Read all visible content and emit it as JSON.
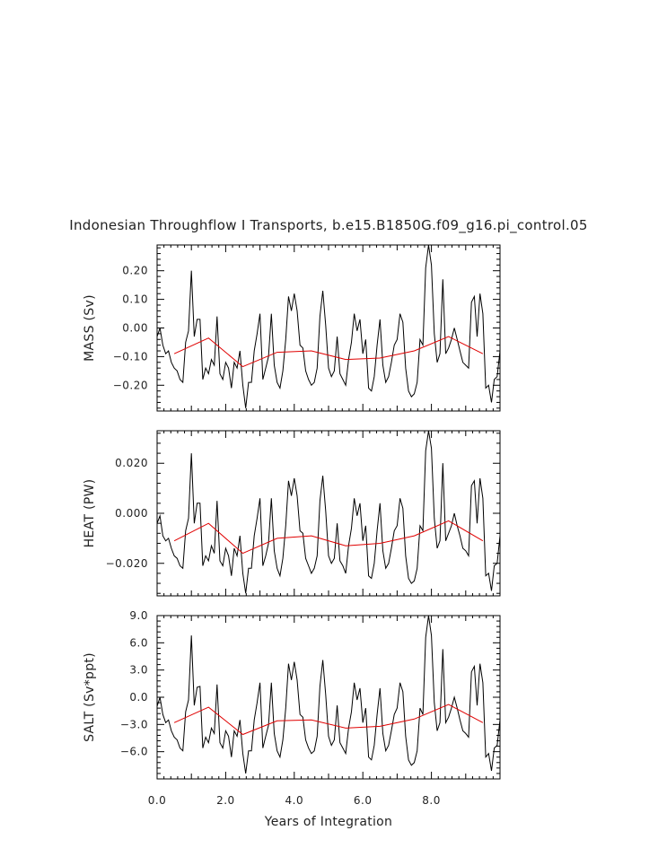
{
  "figure": {
    "title": "Indonesian Throughflow I Transports, b.e15.B1850G.f09_g16.pi_control.05",
    "xlabel": "Years of Integration",
    "x_tick_labels": [
      "0.0",
      "2.0",
      "4.0",
      "6.0",
      "8.0"
    ]
  },
  "colors": {
    "raw_series": "#000000",
    "annual_mean": "#e00000"
  },
  "chart_data": [
    {
      "type": "line",
      "ylabel": "MASS (Sv)",
      "xlim": [
        0,
        10
      ],
      "ylim": [
        -0.29,
        0.29
      ],
      "y_ticks": [
        0.2,
        0.1,
        0.0,
        -0.1,
        -0.2
      ],
      "y_tick_labels": [
        "0.20",
        "0.10",
        "0.00",
        "−0.10",
        "−0.20"
      ],
      "series": [
        {
          "x": [
            0.0,
            0.083,
            0.167,
            0.25,
            0.333,
            0.417,
            0.5,
            0.583,
            0.667,
            0.75,
            0.833,
            0.917,
            1.0,
            1.083,
            1.167,
            1.25,
            1.333,
            1.417,
            1.5,
            1.583,
            1.667,
            1.75,
            1.833,
            1.917,
            2.0,
            2.083,
            2.167,
            2.25,
            2.333,
            2.417,
            2.5,
            2.583,
            2.667,
            2.75,
            2.833,
            2.917,
            3.0,
            3.083,
            3.167,
            3.25,
            3.333,
            3.417,
            3.5,
            3.583,
            3.667,
            3.75,
            3.833,
            3.917,
            4.0,
            4.083,
            4.167,
            4.25,
            4.333,
            4.417,
            4.5,
            4.583,
            4.667,
            4.75,
            4.833,
            4.917,
            5.0,
            5.083,
            5.167,
            5.25,
            5.333,
            5.417,
            5.5,
            5.583,
            5.667,
            5.75,
            5.833,
            5.917,
            6.0,
            6.083,
            6.167,
            6.25,
            6.333,
            6.417,
            6.5,
            6.583,
            6.667,
            6.75,
            6.833,
            6.917,
            7.0,
            7.083,
            7.167,
            7.25,
            7.333,
            7.417,
            7.5,
            7.583,
            7.667,
            7.75,
            7.833,
            7.917,
            8.0,
            8.083,
            8.167,
            8.25,
            8.333,
            8.417,
            8.5,
            8.583,
            8.667,
            8.75,
            8.833,
            8.917,
            9.0,
            9.083,
            9.167,
            9.25,
            9.333,
            9.417,
            9.5,
            9.583,
            9.667,
            9.75,
            9.833,
            9.917,
            10.0
          ],
          "y": [
            -0.03,
            0.0,
            -0.06,
            -0.09,
            -0.08,
            -0.12,
            -0.14,
            -0.15,
            -0.18,
            -0.19,
            -0.05,
            -0.01,
            0.2,
            -0.03,
            0.03,
            0.03,
            -0.18,
            -0.14,
            -0.16,
            -0.11,
            -0.13,
            0.04,
            -0.16,
            -0.18,
            -0.12,
            -0.14,
            -0.21,
            -0.12,
            -0.14,
            -0.08,
            -0.2,
            -0.28,
            -0.19,
            -0.19,
            -0.08,
            -0.02,
            0.05,
            -0.18,
            -0.14,
            -0.1,
            0.05,
            -0.13,
            -0.19,
            -0.21,
            -0.15,
            -0.04,
            0.11,
            0.06,
            0.12,
            0.06,
            -0.06,
            -0.07,
            -0.15,
            -0.18,
            -0.2,
            -0.19,
            -0.14,
            0.04,
            0.13,
            0.01,
            -0.14,
            -0.17,
            -0.15,
            -0.03,
            -0.16,
            -0.18,
            -0.2,
            -0.11,
            -0.05,
            0.05,
            -0.01,
            0.03,
            -0.09,
            -0.04,
            -0.21,
            -0.22,
            -0.17,
            -0.06,
            0.03,
            -0.13,
            -0.19,
            -0.17,
            -0.12,
            -0.06,
            -0.04,
            0.05,
            0.02,
            -0.14,
            -0.22,
            -0.24,
            -0.23,
            -0.19,
            -0.04,
            -0.06,
            0.21,
            0.29,
            0.22,
            -0.02,
            -0.12,
            -0.09,
            0.17,
            -0.09,
            -0.07,
            -0.04,
            0.0,
            -0.04,
            -0.08,
            -0.12,
            -0.13,
            -0.14,
            0.09,
            0.11,
            -0.03,
            0.12,
            0.05,
            -0.21,
            -0.2,
            -0.26,
            -0.18,
            -0.17,
            -0.08
          ]
        },
        {
          "x": [
            0.5,
            1.5,
            2.5,
            3.5,
            4.5,
            5.5,
            6.5,
            7.5,
            8.5,
            9.5
          ],
          "y": [
            -0.09,
            -0.035,
            -0.135,
            -0.085,
            -0.08,
            -0.11,
            -0.105,
            -0.08,
            -0.03,
            -0.09
          ]
        }
      ]
    },
    {
      "type": "line",
      "ylabel": "HEAT (PW)",
      "xlim": [
        0,
        10
      ],
      "ylim": [
        -0.033,
        0.033
      ],
      "y_ticks": [
        0.02,
        0.0,
        -0.02
      ],
      "y_tick_labels": [
        "0.020",
        "0.000",
        "−0.020"
      ],
      "series": [
        {
          "x": [
            0.0,
            0.083,
            0.167,
            0.25,
            0.333,
            0.417,
            0.5,
            0.583,
            0.667,
            0.75,
            0.833,
            0.917,
            1.0,
            1.083,
            1.167,
            1.25,
            1.333,
            1.417,
            1.5,
            1.583,
            1.667,
            1.75,
            1.833,
            1.917,
            2.0,
            2.083,
            2.167,
            2.25,
            2.333,
            2.417,
            2.5,
            2.583,
            2.667,
            2.75,
            2.833,
            2.917,
            3.0,
            3.083,
            3.167,
            3.25,
            3.333,
            3.417,
            3.5,
            3.583,
            3.667,
            3.75,
            3.833,
            3.917,
            4.0,
            4.083,
            4.167,
            4.25,
            4.333,
            4.417,
            4.5,
            4.583,
            4.667,
            4.75,
            4.833,
            4.917,
            5.0,
            5.083,
            5.167,
            5.25,
            5.333,
            5.417,
            5.5,
            5.583,
            5.667,
            5.75,
            5.833,
            5.917,
            6.0,
            6.083,
            6.167,
            6.25,
            6.333,
            6.417,
            6.5,
            6.583,
            6.667,
            6.75,
            6.833,
            6.917,
            7.0,
            7.083,
            7.167,
            7.25,
            7.333,
            7.417,
            7.5,
            7.583,
            7.667,
            7.75,
            7.833,
            7.917,
            8.0,
            8.083,
            8.167,
            8.25,
            8.333,
            8.417,
            8.5,
            8.583,
            8.667,
            8.75,
            8.833,
            8.917,
            9.0,
            9.083,
            9.167,
            9.25,
            9.333,
            9.417,
            9.5,
            9.583,
            9.667,
            9.75,
            9.833,
            9.917,
            10.0
          ],
          "y": [
            -0.004,
            -0.001,
            -0.009,
            -0.011,
            -0.01,
            -0.014,
            -0.017,
            -0.018,
            -0.021,
            -0.022,
            -0.007,
            -0.002,
            0.024,
            -0.004,
            0.004,
            0.004,
            -0.021,
            -0.017,
            -0.019,
            -0.013,
            -0.016,
            0.005,
            -0.019,
            -0.021,
            -0.014,
            -0.017,
            -0.025,
            -0.014,
            -0.017,
            -0.009,
            -0.024,
            -0.032,
            -0.022,
            -0.022,
            -0.009,
            -0.002,
            0.006,
            -0.021,
            -0.017,
            -0.012,
            0.006,
            -0.015,
            -0.022,
            -0.025,
            -0.018,
            -0.005,
            0.013,
            0.007,
            0.014,
            0.007,
            -0.007,
            -0.008,
            -0.018,
            -0.021,
            -0.024,
            -0.022,
            -0.017,
            0.005,
            0.015,
            0.001,
            -0.017,
            -0.02,
            -0.018,
            -0.004,
            -0.019,
            -0.021,
            -0.024,
            -0.013,
            -0.006,
            0.006,
            -0.001,
            0.004,
            -0.011,
            -0.005,
            -0.025,
            -0.026,
            -0.02,
            -0.007,
            0.004,
            -0.015,
            -0.022,
            -0.02,
            -0.014,
            -0.007,
            -0.005,
            0.006,
            0.002,
            -0.017,
            -0.026,
            -0.028,
            -0.027,
            -0.022,
            -0.005,
            -0.007,
            0.025,
            0.033,
            0.026,
            -0.002,
            -0.014,
            -0.011,
            0.02,
            -0.011,
            -0.008,
            -0.005,
            0.0,
            -0.005,
            -0.009,
            -0.014,
            -0.015,
            -0.017,
            0.011,
            0.013,
            -0.004,
            0.014,
            0.006,
            -0.025,
            -0.024,
            -0.031,
            -0.021,
            -0.02,
            -0.009
          ]
        },
        {
          "x": [
            0.5,
            1.5,
            2.5,
            3.5,
            4.5,
            5.5,
            6.5,
            7.5,
            8.5,
            9.5
          ],
          "y": [
            -0.011,
            -0.004,
            -0.016,
            -0.01,
            -0.009,
            -0.013,
            -0.012,
            -0.009,
            -0.003,
            -0.011
          ]
        }
      ]
    },
    {
      "type": "line",
      "ylabel": "SALT (Sv*ppt)",
      "xlim": [
        0,
        10
      ],
      "ylim": [
        -9.0,
        9.0
      ],
      "y_ticks": [
        9.0,
        6.0,
        3.0,
        0.0,
        -3.0,
        -6.0
      ],
      "y_tick_labels": [
        "9.0",
        "6.0",
        "3.0",
        "0.0",
        "−3.0",
        "−6.0"
      ],
      "series": [
        {
          "x": [
            0.0,
            0.083,
            0.167,
            0.25,
            0.333,
            0.417,
            0.5,
            0.583,
            0.667,
            0.75,
            0.833,
            0.917,
            1.0,
            1.083,
            1.167,
            1.25,
            1.333,
            1.417,
            1.5,
            1.583,
            1.667,
            1.75,
            1.833,
            1.917,
            2.0,
            2.083,
            2.167,
            2.25,
            2.333,
            2.417,
            2.5,
            2.583,
            2.667,
            2.75,
            2.833,
            2.917,
            3.0,
            3.083,
            3.167,
            3.25,
            3.333,
            3.417,
            3.5,
            3.583,
            3.667,
            3.75,
            3.833,
            3.917,
            4.0,
            4.083,
            4.167,
            4.25,
            4.333,
            4.417,
            4.5,
            4.583,
            4.667,
            4.75,
            4.833,
            4.917,
            5.0,
            5.083,
            5.167,
            5.25,
            5.333,
            5.417,
            5.5,
            5.583,
            5.667,
            5.75,
            5.833,
            5.917,
            6.0,
            6.083,
            6.167,
            6.25,
            6.333,
            6.417,
            6.5,
            6.583,
            6.667,
            6.75,
            6.833,
            6.917,
            7.0,
            7.083,
            7.167,
            7.25,
            7.333,
            7.417,
            7.5,
            7.583,
            7.667,
            7.75,
            7.833,
            7.917,
            8.0,
            8.083,
            8.167,
            8.25,
            8.333,
            8.417,
            8.5,
            8.583,
            8.667,
            8.75,
            8.833,
            8.917,
            9.0,
            9.083,
            9.167,
            9.25,
            9.333,
            9.417,
            9.5,
            9.583,
            9.667,
            9.75,
            9.833,
            9.917,
            10.0
          ],
          "y": [
            -1.0,
            0.0,
            -1.9,
            -2.8,
            -2.5,
            -3.7,
            -4.4,
            -4.7,
            -5.6,
            -5.9,
            -1.6,
            -0.3,
            6.8,
            -0.9,
            1.1,
            1.2,
            -5.6,
            -4.4,
            -5.0,
            -3.4,
            -4.0,
            1.4,
            -5.0,
            -5.6,
            -3.7,
            -4.3,
            -6.6,
            -3.7,
            -4.3,
            -2.5,
            -6.2,
            -8.4,
            -5.9,
            -5.9,
            -2.5,
            -0.6,
            1.6,
            -5.6,
            -4.3,
            -3.1,
            1.6,
            -4.0,
            -5.9,
            -6.6,
            -4.7,
            -1.2,
            3.7,
            1.9,
            3.9,
            1.9,
            -1.9,
            -2.2,
            -4.7,
            -5.6,
            -6.2,
            -5.9,
            -4.3,
            1.2,
            4.1,
            0.3,
            -4.3,
            -5.3,
            -4.7,
            -0.9,
            -5.0,
            -5.6,
            -6.2,
            -3.4,
            -1.6,
            1.6,
            -0.3,
            1.0,
            -2.8,
            -1.2,
            -6.6,
            -6.9,
            -5.3,
            -1.9,
            1.0,
            -4.0,
            -5.9,
            -5.3,
            -3.7,
            -1.9,
            -1.2,
            1.6,
            0.6,
            -4.3,
            -6.9,
            -7.5,
            -7.2,
            -5.9,
            -1.2,
            -1.9,
            6.6,
            9.0,
            6.8,
            -0.6,
            -3.7,
            -2.8,
            5.3,
            -2.8,
            -2.2,
            -1.2,
            0.0,
            -1.2,
            -2.5,
            -3.7,
            -4.0,
            -4.4,
            2.8,
            3.4,
            -0.9,
            3.7,
            1.6,
            -6.6,
            -6.2,
            -8.1,
            -5.6,
            -5.3,
            -2.5
          ]
        },
        {
          "x": [
            0.5,
            1.5,
            2.5,
            3.5,
            4.5,
            5.5,
            6.5,
            7.5,
            8.5,
            9.5
          ],
          "y": [
            -2.8,
            -1.1,
            -4.1,
            -2.6,
            -2.5,
            -3.4,
            -3.2,
            -2.4,
            -0.8,
            -2.8
          ]
        }
      ]
    }
  ]
}
